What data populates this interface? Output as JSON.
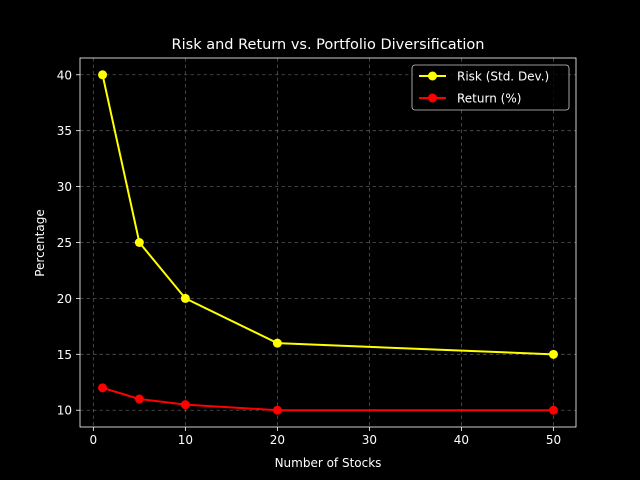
{
  "chart_data": {
    "type": "line",
    "title": "Risk and Return vs. Portfolio Diversification",
    "xlabel": "Number of Stocks",
    "ylabel": "Percentage",
    "x": [
      1,
      5,
      10,
      20,
      50
    ],
    "xlim": [
      -1.45,
      52.45
    ],
    "ylim": [
      8.5,
      41.5
    ],
    "xticks": [
      0,
      10,
      20,
      30,
      40,
      50
    ],
    "yticks": [
      10,
      15,
      20,
      25,
      30,
      35,
      40
    ],
    "grid": true,
    "legend_position": "top-right",
    "series": [
      {
        "name": "Risk (Std. Dev.)",
        "color": "#ffff00",
        "values": [
          40,
          25,
          20,
          16,
          15
        ]
      },
      {
        "name": "Return (%)",
        "color": "#ff0000",
        "values": [
          12,
          11,
          10.5,
          10,
          10
        ]
      }
    ]
  }
}
